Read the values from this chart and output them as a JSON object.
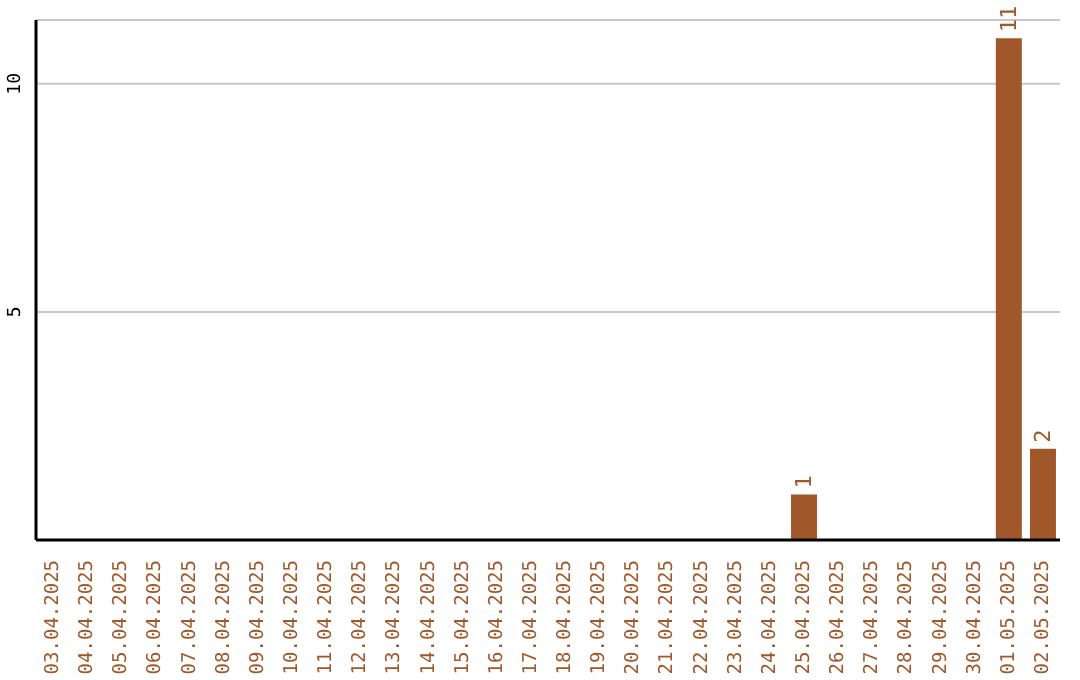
{
  "chart_data": {
    "type": "bar",
    "categories": [
      "03.04.2025",
      "04.04.2025",
      "05.04.2025",
      "06.04.2025",
      "07.04.2025",
      "08.04.2025",
      "09.04.2025",
      "10.04.2025",
      "11.04.2025",
      "12.04.2025",
      "13.04.2025",
      "14.04.2025",
      "15.04.2025",
      "16.04.2025",
      "17.04.2025",
      "18.04.2025",
      "19.04.2025",
      "20.04.2025",
      "21.04.2025",
      "22.04.2025",
      "23.04.2025",
      "24.04.2025",
      "25.04.2025",
      "26.04.2025",
      "27.04.2025",
      "28.04.2025",
      "29.04.2025",
      "30.04.2025",
      "01.05.2025",
      "02.05.2025"
    ],
    "values": [
      0,
      0,
      0,
      0,
      0,
      0,
      0,
      0,
      0,
      0,
      0,
      0,
      0,
      0,
      0,
      0,
      0,
      0,
      0,
      0,
      0,
      0,
      1,
      0,
      0,
      0,
      0,
      0,
      11,
      2
    ],
    "value_labels": [
      null,
      null,
      null,
      null,
      null,
      null,
      null,
      null,
      null,
      null,
      null,
      null,
      null,
      null,
      null,
      null,
      null,
      null,
      null,
      null,
      null,
      null,
      "1",
      null,
      null,
      null,
      null,
      null,
      "11",
      "2"
    ],
    "color": "#a0572a",
    "ylim": [
      0,
      11.4
    ],
    "yticks": [
      5,
      10
    ],
    "grid": "y"
  }
}
